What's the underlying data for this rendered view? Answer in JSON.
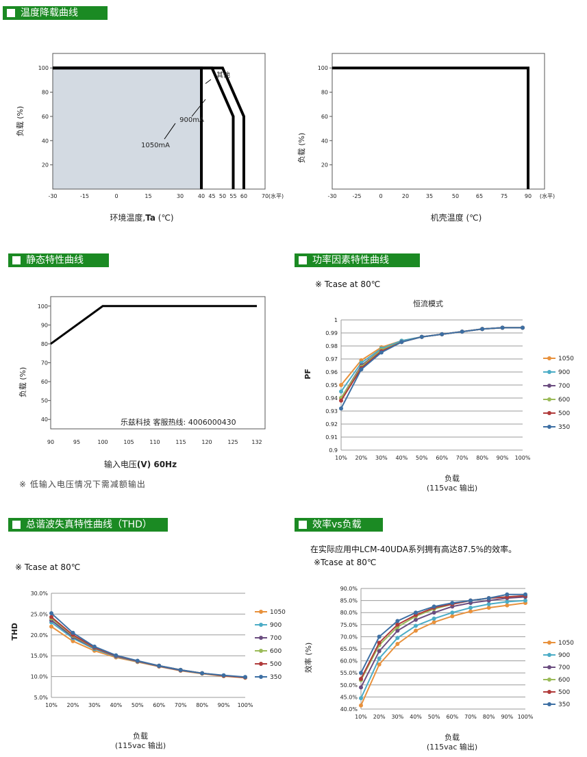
{
  "sections": {
    "derating": "温度降载曲线",
    "static": "静态特性曲线",
    "pf": "功率因素特性曲线",
    "thd": "总谐波失真特性曲线（THD）",
    "efficiency": "效率vs负载"
  },
  "notes": {
    "static_footnote": "※ 低输入电压情况下需减额输出",
    "pf_tcase": "※ Tcase at 80℃",
    "thd_tcase": "※ Tcase at 80℃",
    "eff_intro": "在实际应用中LCM-40UDA系列拥有高达87.5%的效率。",
    "eff_tcase": "※Tcase at 80℃"
  },
  "colors": {
    "header_green": "#1b8a23",
    "derating_fill": "#d3dae2",
    "series_1050": "#e8913c",
    "series_900": "#4bacc6",
    "series_700": "#6a4c7f",
    "series_600": "#9bbb59",
    "series_500": "#b03a3a",
    "series_350": "#3d6fa3"
  },
  "chart_data": [
    {
      "id": "derating_ambient",
      "type": "line",
      "xlabel_prefix": "环境温度,",
      "xlabel_bold": "Ta",
      "xlabel_suffix": " (℃)",
      "ylabel": "负载 (%)",
      "x_ticks": [
        "-30",
        "-15",
        "0",
        "15",
        "30",
        "40",
        "45",
        "50",
        "55",
        "60",
        "70"
      ],
      "x_unit_note": "(水平)",
      "y_ticks": [
        "20",
        "40",
        "60",
        "80",
        "100"
      ],
      "xlim": [
        -30,
        70
      ],
      "ylim": [
        0,
        100
      ],
      "series": [
        {
          "name": "1050mA",
          "x": [
            -30,
            40,
            40
          ],
          "y": [
            100,
            100,
            0
          ]
        },
        {
          "name": "900mA",
          "x": [
            -30,
            45,
            55,
            55
          ],
          "y": [
            100,
            100,
            60,
            0
          ]
        },
        {
          "name": "其他",
          "x": [
            -30,
            50,
            60,
            60
          ],
          "y": [
            100,
            100,
            60,
            0
          ]
        }
      ],
      "annotations": [
        "其他",
        "900mA",
        "1050mA"
      ]
    },
    {
      "id": "derating_case",
      "type": "line",
      "xlabel": "机壳温度 (℃)",
      "ylabel": "负载 (%)",
      "x_ticks": [
        "-30",
        "-25",
        "0",
        "20",
        "35",
        "50",
        "65",
        "75",
        "90"
      ],
      "x_unit_note": "(水平)",
      "y_ticks": [
        "20",
        "40",
        "60",
        "80",
        "100"
      ],
      "ylim": [
        0,
        100
      ],
      "series": [
        {
          "x": [
            "-30",
            "90",
            "90"
          ],
          "y": [
            100,
            100,
            0
          ]
        }
      ]
    },
    {
      "id": "static",
      "type": "line",
      "xlabel_prefix": "输入电压",
      "xlabel_bold": "(V) 60Hz",
      "ylabel": "负载 (%)",
      "x_ticks": [
        "90",
        "95",
        "100",
        "105",
        "110",
        "115",
        "120",
        "125",
        "132"
      ],
      "y_ticks": [
        "40",
        "50",
        "60",
        "70",
        "80",
        "90",
        "100"
      ],
      "xlim": [
        90,
        132
      ],
      "ylim": [
        35,
        105
      ],
      "series": [
        {
          "x": [
            90,
            100,
            132
          ],
          "y": [
            80,
            100,
            100
          ]
        }
      ],
      "annotation": "乐兹科技 客服热线: 4006000430"
    },
    {
      "id": "pf",
      "type": "line",
      "title": "恒流模式",
      "xlabel": "负载",
      "xlabel2": "(115vac 输出)",
      "ylabel": "PF",
      "categories": [
        "10%",
        "20%",
        "30%",
        "40%",
        "50%",
        "60%",
        "70%",
        "80%",
        "90%",
        "100%"
      ],
      "y_ticks": [
        "0.9",
        "0.91",
        "0.92",
        "0.93",
        "0.94",
        "0.95",
        "0.96",
        "0.97",
        "0.98",
        "0.99",
        "1"
      ],
      "ylim": [
        0.9,
        1.0
      ],
      "series": [
        {
          "name": "1050",
          "values": [
            0.95,
            0.969,
            0.979,
            0.984,
            0.987,
            0.989,
            0.991,
            0.993,
            0.994,
            0.994
          ]
        },
        {
          "name": "900",
          "values": [
            0.945,
            0.967,
            0.978,
            0.984,
            0.987,
            0.989,
            0.991,
            0.993,
            0.994,
            0.994
          ]
        },
        {
          "name": "700",
          "values": [
            0.94,
            0.965,
            0.977,
            0.983,
            0.987,
            0.989,
            0.991,
            0.993,
            0.994,
            0.994
          ]
        },
        {
          "name": "600",
          "values": [
            0.94,
            0.964,
            0.977,
            0.983,
            0.987,
            0.989,
            0.991,
            0.993,
            0.994,
            0.994
          ]
        },
        {
          "name": "500",
          "values": [
            0.938,
            0.963,
            0.976,
            0.983,
            0.987,
            0.989,
            0.991,
            0.993,
            0.994,
            0.994
          ]
        },
        {
          "name": "350",
          "values": [
            0.932,
            0.962,
            0.975,
            0.983,
            0.987,
            0.989,
            0.991,
            0.993,
            0.994,
            0.994
          ]
        }
      ]
    },
    {
      "id": "thd",
      "type": "line",
      "xlabel": "负载",
      "xlabel2": "(115vac 输出)",
      "ylabel": "THD",
      "categories": [
        "10%",
        "20%",
        "30%",
        "40%",
        "50%",
        "60%",
        "70%",
        "80%",
        "90%",
        "100%"
      ],
      "y_ticks": [
        "5.0%",
        "10.0%",
        "15.0%",
        "20.0%",
        "25.0%",
        "30.0%"
      ],
      "ylim": [
        5,
        30
      ],
      "series": [
        {
          "name": "1050",
          "values": [
            22.0,
            18.5,
            16.2,
            14.6,
            13.5,
            12.4,
            11.4,
            10.7,
            10.1,
            9.7
          ]
        },
        {
          "name": "900",
          "values": [
            23.0,
            19.2,
            16.6,
            14.8,
            13.6,
            12.5,
            11.5,
            10.8,
            10.2,
            9.8
          ]
        },
        {
          "name": "700",
          "values": [
            23.5,
            19.5,
            16.8,
            14.9,
            13.7,
            12.5,
            11.5,
            10.8,
            10.2,
            9.8
          ]
        },
        {
          "name": "600",
          "values": [
            24.0,
            19.8,
            16.9,
            15.0,
            13.7,
            12.6,
            11.6,
            10.8,
            10.2,
            9.8
          ]
        },
        {
          "name": "500",
          "values": [
            24.3,
            20.0,
            17.0,
            15.0,
            13.7,
            12.6,
            11.6,
            10.8,
            10.2,
            9.8
          ]
        },
        {
          "name": "350",
          "values": [
            25.2,
            20.5,
            17.2,
            15.1,
            13.8,
            12.6,
            11.6,
            10.8,
            10.3,
            9.9
          ]
        }
      ]
    },
    {
      "id": "efficiency",
      "type": "line",
      "xlabel": "负载",
      "xlabel2": "(115vac 输出)",
      "ylabel": "效率 (%)",
      "categories": [
        "10%",
        "20%",
        "30%",
        "40%",
        "50%",
        "60%",
        "70%",
        "80%",
        "90%",
        "100%"
      ],
      "y_ticks": [
        "40.0%",
        "45.0%",
        "50.0%",
        "55.0%",
        "60.0%",
        "65.0%",
        "70.0%",
        "75.0%",
        "80.0%",
        "85.0%",
        "90.0%"
      ],
      "ylim": [
        40,
        90
      ],
      "series": [
        {
          "name": "1050",
          "values": [
            41.5,
            58.5,
            67.0,
            72.5,
            76.0,
            78.5,
            80.5,
            82.0,
            83.0,
            84.0
          ]
        },
        {
          "name": "900",
          "values": [
            44.5,
            61.0,
            69.5,
            74.5,
            77.5,
            80.0,
            82.0,
            83.5,
            84.5,
            85.0
          ]
        },
        {
          "name": "700",
          "values": [
            49.0,
            64.0,
            72.5,
            77.0,
            80.0,
            82.5,
            84.0,
            85.0,
            86.0,
            86.5
          ]
        },
        {
          "name": "600",
          "values": [
            52.0,
            66.5,
            74.0,
            78.5,
            81.5,
            83.5,
            85.0,
            86.0,
            86.5,
            87.0
          ]
        },
        {
          "name": "500",
          "values": [
            52.5,
            67.5,
            75.0,
            79.0,
            82.0,
            83.5,
            85.0,
            86.0,
            86.5,
            87.0
          ]
        },
        {
          "name": "350",
          "values": [
            55.0,
            70.0,
            76.5,
            80.0,
            82.5,
            84.0,
            85.0,
            86.0,
            87.5,
            87.5
          ]
        }
      ]
    }
  ]
}
